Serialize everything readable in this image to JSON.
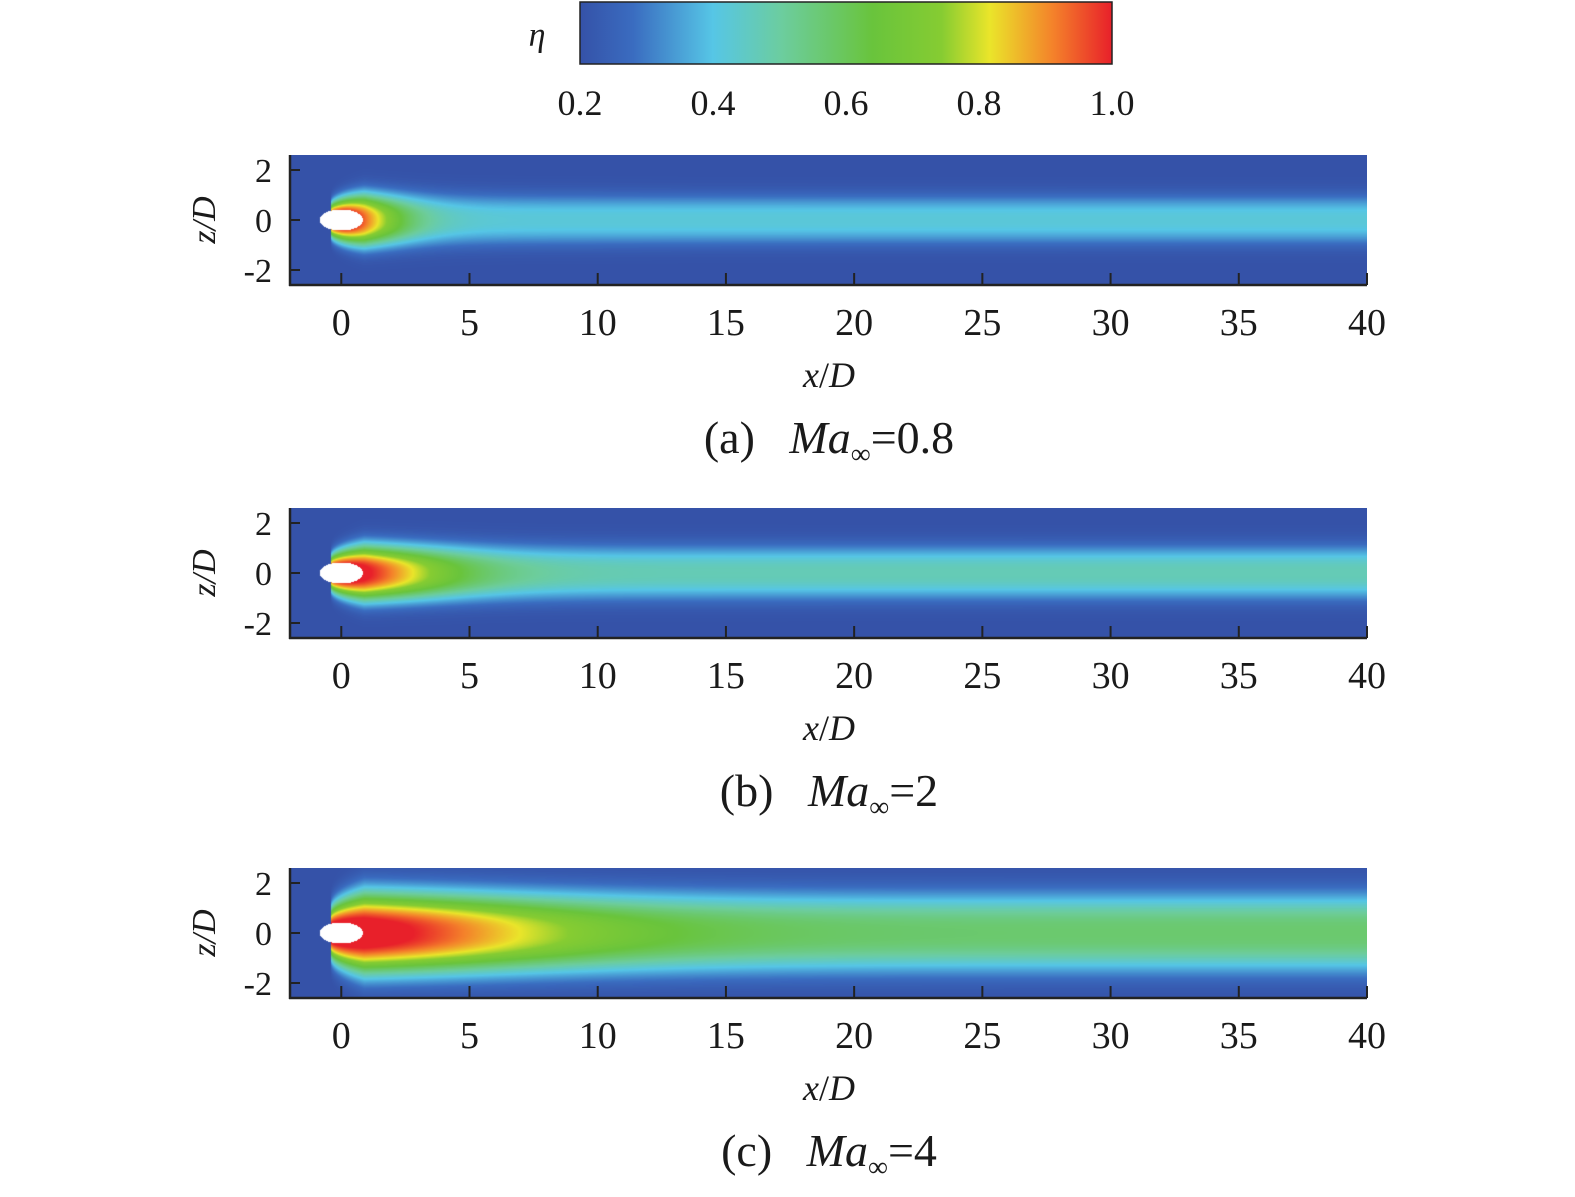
{
  "colorbar": {
    "label": "η",
    "ticks": [
      "0.2",
      "0.4",
      "0.6",
      "0.8",
      "1.0"
    ],
    "range": [
      0.2,
      1.0
    ],
    "colormap": [
      "#3552a8",
      "#3a6cc0",
      "#56c6e6",
      "#6ccd9e",
      "#69c43c",
      "#86cc32",
      "#eae52a",
      "#f4812a",
      "#e8202a"
    ]
  },
  "chart_data": [
    {
      "type": "heatmap",
      "panel_label": "(a)",
      "mach_symbol": "Ma",
      "mach_subscript": "∞",
      "mach_value": "=0.8",
      "xlabel_var": "x",
      "xlabel_den": "D",
      "ylabel": "z/D",
      "xlim": [
        -2,
        40
      ],
      "ylim": [
        -2.6,
        2.6
      ],
      "x_ticks": [
        "0",
        "5",
        "10",
        "15",
        "20",
        "25",
        "30",
        "35",
        "40"
      ],
      "y_ticks": [
        "2",
        "0",
        "-2"
      ],
      "hole_center_x": 0,
      "field": {
        "core_peak": 1.0,
        "core_length": 2.2,
        "far_value": 0.42,
        "wake_halfwidth_near": 1.05,
        "wake_halfwidth_far": 0.95
      }
    },
    {
      "type": "heatmap",
      "panel_label": "(b)",
      "mach_symbol": "Ma",
      "mach_subscript": "∞",
      "mach_value": "=2",
      "xlabel_var": "x",
      "xlabel_den": "D",
      "ylabel": "z/D",
      "xlim": [
        -2,
        40
      ],
      "ylim": [
        -2.6,
        2.6
      ],
      "x_ticks": [
        "0",
        "5",
        "10",
        "15",
        "20",
        "25",
        "30",
        "35",
        "40"
      ],
      "y_ticks": [
        "2",
        "0",
        "-2"
      ],
      "hole_center_x": 0,
      "field": {
        "core_peak": 1.0,
        "core_length": 4.0,
        "far_value": 0.47,
        "wake_halfwidth_near": 1.1,
        "wake_halfwidth_far": 1.05
      }
    },
    {
      "type": "heatmap",
      "panel_label": "(c)",
      "mach_symbol": "Ma",
      "mach_subscript": "∞",
      "mach_value": "=4",
      "xlabel_var": "x",
      "xlabel_den": "D",
      "ylabel": "z/D",
      "xlim": [
        -2,
        40
      ],
      "ylim": [
        -2.6,
        2.6
      ],
      "x_ticks": [
        "0",
        "5",
        "10",
        "15",
        "20",
        "25",
        "30",
        "35",
        "40"
      ],
      "y_ticks": [
        "2",
        "0",
        "-2"
      ],
      "hole_center_x": 0,
      "field": {
        "core_peak": 1.0,
        "core_length": 8.5,
        "far_value": 0.57,
        "wake_halfwidth_near": 1.6,
        "wake_halfwidth_far": 1.55
      }
    }
  ]
}
